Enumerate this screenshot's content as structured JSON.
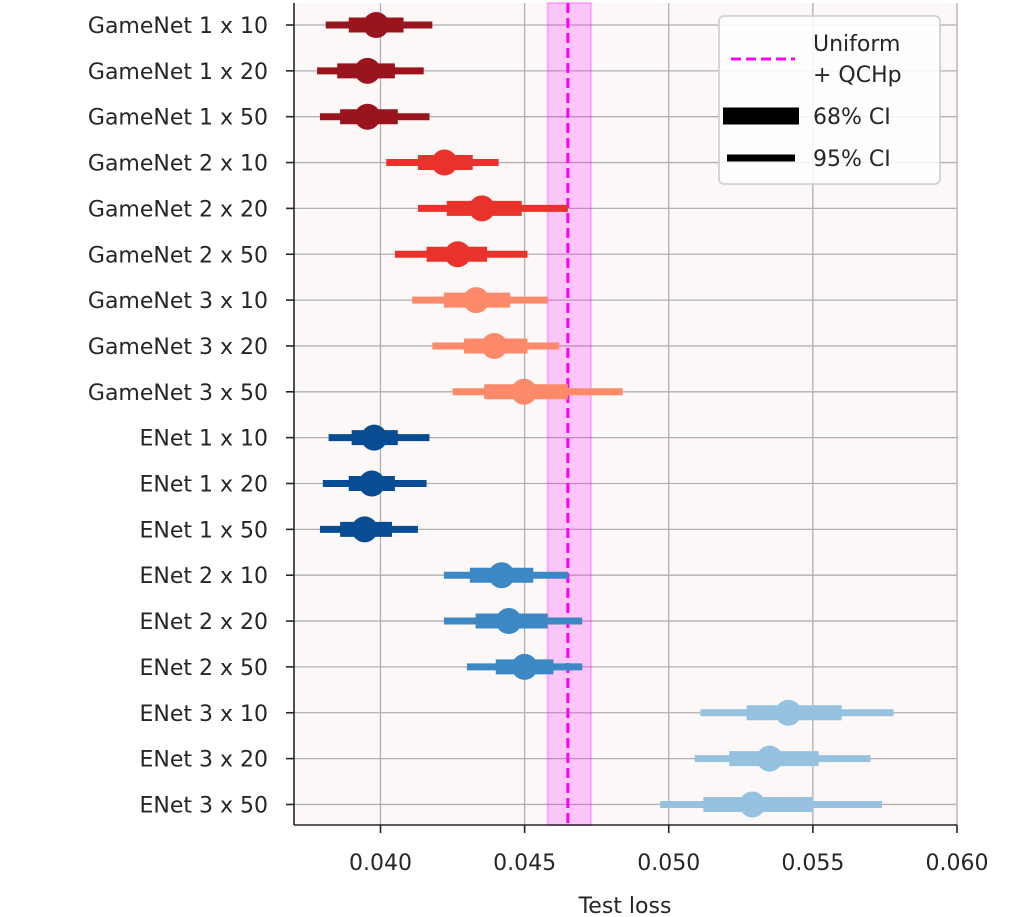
{
  "chart_data": {
    "type": "forest",
    "xlabel": "Test loss",
    "ylabel": "",
    "xlim": [
      0.037,
      0.06
    ],
    "x_ticks": [
      "0.040",
      "0.045",
      "0.050",
      "0.055",
      "0.060"
    ],
    "grid": true,
    "legend_position": "top-right",
    "reference": {
      "label": "Uniform\n+ QCHp",
      "label_line1": "Uniform",
      "label_line2": "+ QCHp",
      "value": 0.0465,
      "band": [
        0.0458,
        0.0473
      ],
      "color": "#ff00ff"
    },
    "legend": {
      "ci68_label": "68% CI",
      "ci95_label": "95% CI"
    },
    "series": [
      {
        "name": "GameNet 1 x 10",
        "mean": 0.03985,
        "ci68": [
          0.0389,
          0.0408
        ],
        "ci95": [
          0.0381,
          0.0418
        ],
        "color": "#99141c"
      },
      {
        "name": "GameNet 1 x 20",
        "mean": 0.03955,
        "ci68": [
          0.0385,
          0.0405
        ],
        "ci95": [
          0.0378,
          0.0415
        ],
        "color": "#99141c"
      },
      {
        "name": "GameNet 1 x 50",
        "mean": 0.03955,
        "ci68": [
          0.0386,
          0.0406
        ],
        "ci95": [
          0.0379,
          0.0417
        ],
        "color": "#99141c"
      },
      {
        "name": "GameNet 2 x 10",
        "mean": 0.04222,
        "ci68": [
          0.0413,
          0.0432
        ],
        "ci95": [
          0.0402,
          0.0441
        ],
        "color": "#e8322b"
      },
      {
        "name": "GameNet 2 x 20",
        "mean": 0.04352,
        "ci68": [
          0.0423,
          0.0449
        ],
        "ci95": [
          0.0413,
          0.0465
        ],
        "color": "#e8322b"
      },
      {
        "name": "GameNet 2 x 50",
        "mean": 0.04268,
        "ci68": [
          0.0416,
          0.0437
        ],
        "ci95": [
          0.0405,
          0.0451
        ],
        "color": "#e8322b"
      },
      {
        "name": "GameNet 3 x 10",
        "mean": 0.04332,
        "ci68": [
          0.0422,
          0.0445
        ],
        "ci95": [
          0.0411,
          0.0458
        ],
        "color": "#fc8a6a"
      },
      {
        "name": "GameNet 3 x 20",
        "mean": 0.04395,
        "ci68": [
          0.0429,
          0.0451
        ],
        "ci95": [
          0.0418,
          0.0462
        ],
        "color": "#fc8a6a"
      },
      {
        "name": "GameNet 3 x 50",
        "mean": 0.04498,
        "ci68": [
          0.0436,
          0.0465
        ],
        "ci95": [
          0.0425,
          0.0484
        ],
        "color": "#fc8a6a"
      },
      {
        "name": "ENet 1 x 10",
        "mean": 0.03978,
        "ci68": [
          0.039,
          0.0406
        ],
        "ci95": [
          0.0382,
          0.0417
        ],
        "color": "#084c94"
      },
      {
        "name": "ENet 1 x 20",
        "mean": 0.0397,
        "ci68": [
          0.0389,
          0.0405
        ],
        "ci95": [
          0.038,
          0.0416
        ],
        "color": "#084c94"
      },
      {
        "name": "ENet 1 x 50",
        "mean": 0.03945,
        "ci68": [
          0.0386,
          0.0404
        ],
        "ci95": [
          0.0379,
          0.0413
        ],
        "color": "#084c94"
      },
      {
        "name": "ENet 2 x 10",
        "mean": 0.0442,
        "ci68": [
          0.0431,
          0.0453
        ],
        "ci95": [
          0.0422,
          0.0465
        ],
        "color": "#3b88c4"
      },
      {
        "name": "ENet 2 x 20",
        "mean": 0.04445,
        "ci68": [
          0.0433,
          0.0458
        ],
        "ci95": [
          0.0422,
          0.047
        ],
        "color": "#3b88c4"
      },
      {
        "name": "ENet 2 x 50",
        "mean": 0.045,
        "ci68": [
          0.044,
          0.046
        ],
        "ci95": [
          0.043,
          0.047
        ],
        "color": "#3b88c4"
      },
      {
        "name": "ENet 3 x 10",
        "mean": 0.05415,
        "ci68": [
          0.0527,
          0.056
        ],
        "ci95": [
          0.0511,
          0.0578
        ],
        "color": "#96c2e0"
      },
      {
        "name": "ENet 3 x 20",
        "mean": 0.0535,
        "ci68": [
          0.0521,
          0.0552
        ],
        "ci95": [
          0.0509,
          0.057
        ],
        "color": "#96c2e0"
      },
      {
        "name": "ENet 3 x 50",
        "mean": 0.0529,
        "ci68": [
          0.0512,
          0.055
        ],
        "ci95": [
          0.0497,
          0.0574
        ],
        "color": "#96c2e0"
      }
    ]
  }
}
